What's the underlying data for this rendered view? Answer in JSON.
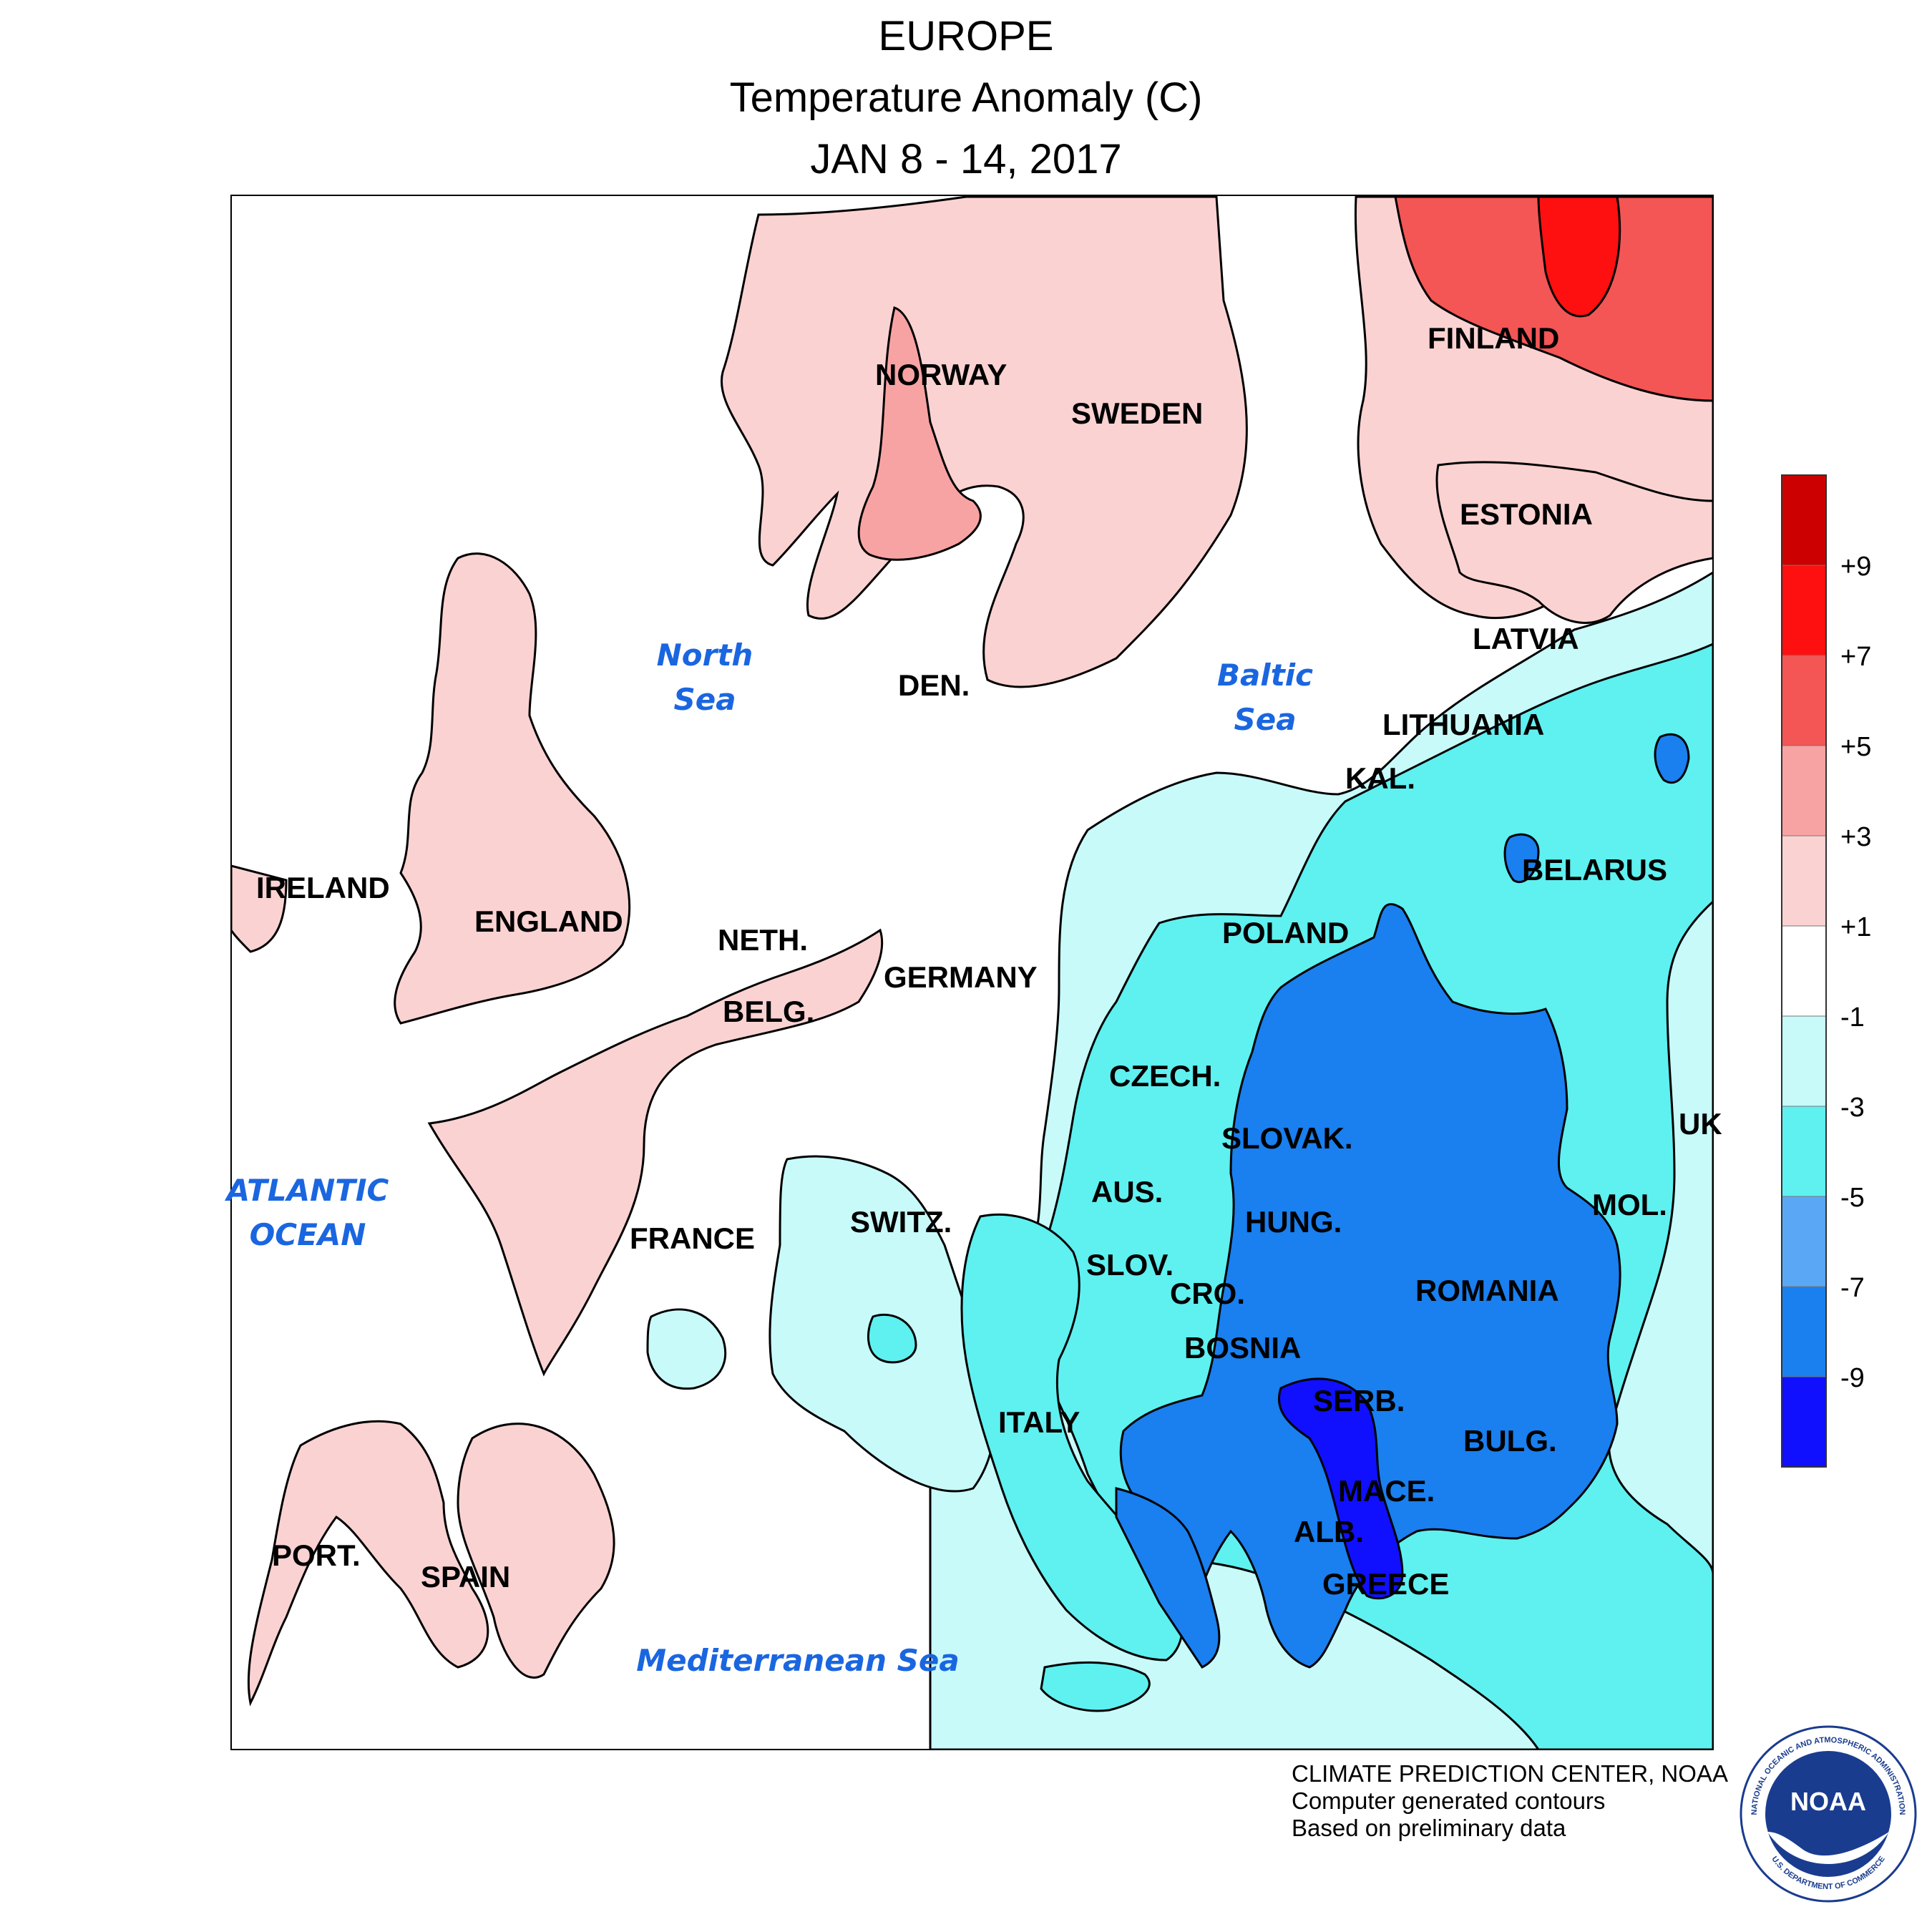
{
  "title": {
    "line1": "EUROPE",
    "line2": "Temperature Anomaly (C)",
    "line3": "JAN 8 - 14, 2017"
  },
  "countries": [
    {
      "id": "finland",
      "label": "FINLAND"
    },
    {
      "id": "norway",
      "label": "NORWAY"
    },
    {
      "id": "sweden",
      "label": "SWEDEN"
    },
    {
      "id": "estonia",
      "label": "ESTONIA"
    },
    {
      "id": "latvia",
      "label": "LATVIA"
    },
    {
      "id": "lithuania",
      "label": "LITHUANIA"
    },
    {
      "id": "kal",
      "label": "KAL."
    },
    {
      "id": "belarus",
      "label": "BELARUS"
    },
    {
      "id": "den",
      "label": "DEN."
    },
    {
      "id": "ireland",
      "label": "IRELAND"
    },
    {
      "id": "england",
      "label": "ENGLAND"
    },
    {
      "id": "neth",
      "label": "NETH."
    },
    {
      "id": "belg",
      "label": "BELG."
    },
    {
      "id": "germany",
      "label": "GERMANY"
    },
    {
      "id": "poland",
      "label": "POLAND"
    },
    {
      "id": "czech",
      "label": "CZECH."
    },
    {
      "id": "slovak",
      "label": "SLOVAK."
    },
    {
      "id": "aus",
      "label": "AUS."
    },
    {
      "id": "hung",
      "label": "HUNG."
    },
    {
      "id": "switz",
      "label": "SWITZ."
    },
    {
      "id": "france",
      "label": "FRANCE"
    },
    {
      "id": "slov",
      "label": "SLOV."
    },
    {
      "id": "cro",
      "label": "CRO."
    },
    {
      "id": "bosnia",
      "label": "BOSNIA"
    },
    {
      "id": "romania",
      "label": "ROMANIA"
    },
    {
      "id": "mol",
      "label": "MOL."
    },
    {
      "id": "serb",
      "label": "SERB."
    },
    {
      "id": "bulg",
      "label": "BULG."
    },
    {
      "id": "mace",
      "label": "MACE."
    },
    {
      "id": "alb",
      "label": "ALB."
    },
    {
      "id": "greece",
      "label": "GREECE"
    },
    {
      "id": "italy",
      "label": "ITALY"
    },
    {
      "id": "port",
      "label": "PORT."
    },
    {
      "id": "spain",
      "label": "SPAIN"
    },
    {
      "id": "ukr",
      "label": "UK"
    }
  ],
  "seas": [
    {
      "id": "north-sea",
      "lines": [
        "North",
        "Sea"
      ]
    },
    {
      "id": "baltic-sea",
      "lines": [
        "Baltic",
        "Sea"
      ]
    },
    {
      "id": "atlantic-ocean",
      "lines": [
        "ATLANTIC",
        "OCEAN"
      ]
    },
    {
      "id": "mediterranean-sea",
      "lines": [
        "Mediterranean Sea"
      ]
    }
  ],
  "legend": {
    "colors": [
      "#1010ff",
      "#1a7fef",
      "#5aa8f5",
      "#5ff0f0",
      "#c8fafa",
      "#ffffff",
      "#fbd2d2",
      "#f8a3a3",
      "#f45555",
      "#ff1010",
      "#cc0000"
    ],
    "labels": [
      "-9",
      "-7",
      "-5",
      "-3",
      "-1",
      "+1",
      "+3",
      "+5",
      "+7",
      "+9"
    ]
  },
  "credits": {
    "line1": "CLIMATE PREDICTION CENTER, NOAA",
    "line2": "Computer generated contours",
    "line3": "Based on preliminary data"
  },
  "logo": {
    "text": "NOAA",
    "ring_top": "NATIONAL OCEANIC AND ATMOSPHERIC ADMINISTRATION",
    "ring_bottom": "U.S. DEPARTMENT OF COMMERCE"
  }
}
